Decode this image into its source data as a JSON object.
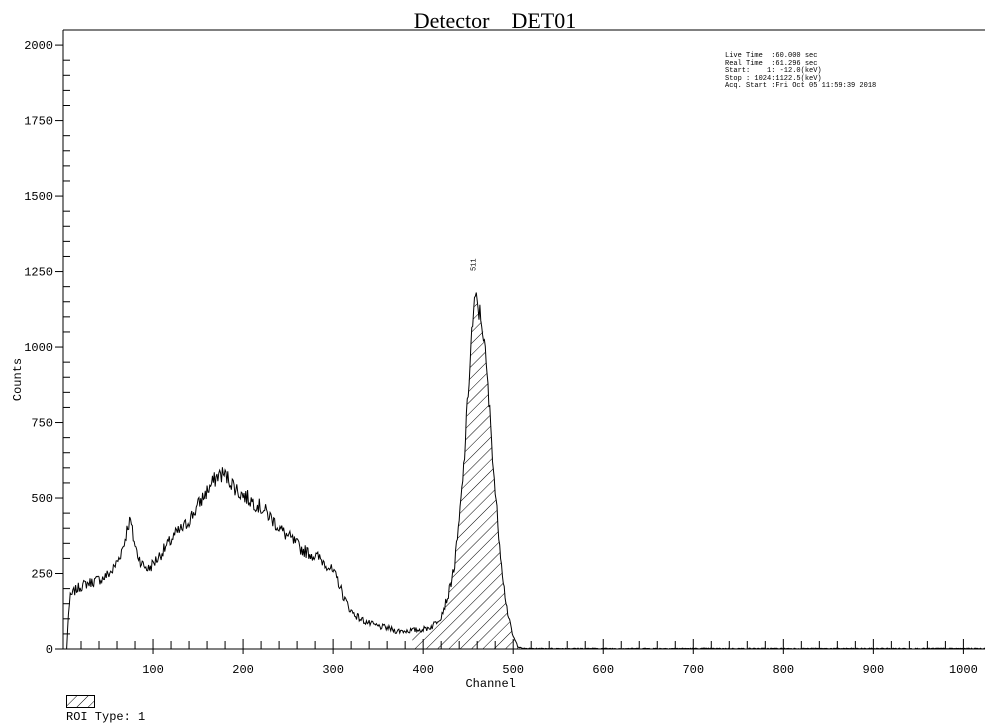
{
  "chart_data": {
    "type": "area",
    "title": "Detector    DET01",
    "xlabel": "Channel",
    "ylabel": "Counts",
    "xlim": [
      0,
      1024
    ],
    "ylim": [
      0,
      2050
    ],
    "xticks": [
      100,
      200,
      300,
      400,
      500,
      600,
      700,
      800,
      900,
      1000
    ],
    "yticks": [
      0,
      250,
      500,
      750,
      1000,
      1250,
      1500,
      1750,
      2000
    ],
    "grid": false,
    "series": [
      {
        "x": [
          0,
          4,
          6,
          8,
          12,
          18,
          25,
          35,
          45,
          55,
          62,
          68,
          72,
          75,
          78,
          82,
          88,
          95,
          105,
          115,
          125,
          135,
          145,
          155,
          165,
          172,
          178,
          185,
          195,
          205,
          215,
          225,
          235,
          245,
          255,
          265,
          275,
          285,
          295,
          305,
          312,
          320,
          330,
          340,
          350,
          360,
          370,
          380,
          390,
          400,
          410,
          420,
          428,
          435,
          440,
          445,
          450,
          454,
          458,
          462,
          466,
          470,
          475,
          480,
          485,
          490,
          495,
          500,
          505,
          510,
          515,
          520,
          530,
          550,
          600,
          650,
          700,
          750,
          800,
          850,
          900,
          950,
          1000,
          1024
        ],
        "y": [
          0,
          0,
          120,
          170,
          190,
          205,
          215,
          225,
          235,
          260,
          300,
          350,
          410,
          425,
          370,
          320,
          280,
          265,
          300,
          340,
          380,
          405,
          450,
          500,
          545,
          575,
          580,
          560,
          520,
          500,
          480,
          455,
          420,
          385,
          360,
          330,
          315,
          300,
          275,
          230,
          170,
          125,
          100,
          85,
          75,
          70,
          60,
          60,
          62,
          65,
          75,
          110,
          180,
          280,
          420,
          600,
          850,
          1050,
          1160,
          1120,
          1070,
          940,
          740,
          520,
          350,
          200,
          100,
          40,
          10,
          4,
          2,
          1,
          1,
          1,
          0,
          0,
          0,
          0,
          0,
          0,
          0,
          0,
          0,
          0
        ]
      }
    ],
    "roi": {
      "type": "1",
      "x_start": 388,
      "x_end": 518
    },
    "annotations": [
      {
        "label": "511",
        "x": 458
      }
    ]
  },
  "acquisition": [
    "Live Time  :60.000 sec",
    "Real Time  :61.296 sec",
    "Start:    1: -12.0(keV)",
    "Stop : 1024:1122.5(keV)",
    "Acq. Start :Fri Oct 05 11:59:39 2018"
  ],
  "roi_legend_label": "ROI Type: 1",
  "colors": {
    "axis": "#000000",
    "line": "#000000",
    "hatch": "#000000",
    "background": "#ffffff"
  }
}
